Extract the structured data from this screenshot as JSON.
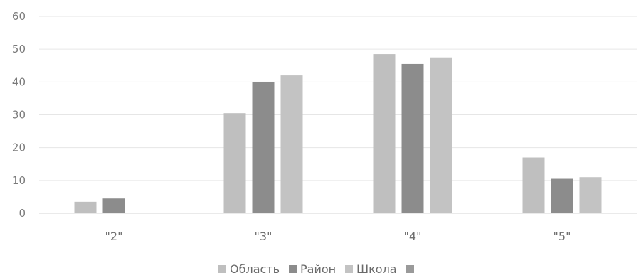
{
  "chart_data": {
    "type": "bar",
    "categories": [
      "\"2\"",
      "\"3\"",
      "\"4\"",
      "\"5\""
    ],
    "series": [
      {
        "name": "Область",
        "values": [
          3.5,
          30.5,
          48.5,
          17
        ],
        "color": "#bfbfbf"
      },
      {
        "name": "Район",
        "values": [
          4.5,
          40,
          45.5,
          10.5
        ],
        "color": "#8c8c8c"
      },
      {
        "name": "Школа",
        "values": [
          0,
          42,
          47.5,
          11
        ],
        "color": "#c3c3c3"
      },
      {
        "name": "",
        "values": [
          0,
          0,
          0,
          0
        ],
        "color": "#9a9a9a"
      }
    ],
    "ylim": [
      0,
      60
    ],
    "yticks": [
      0,
      10,
      20,
      30,
      40,
      50,
      60
    ],
    "grid": true,
    "legend": "bottom",
    "title": "",
    "xlabel": "",
    "ylabel": ""
  }
}
